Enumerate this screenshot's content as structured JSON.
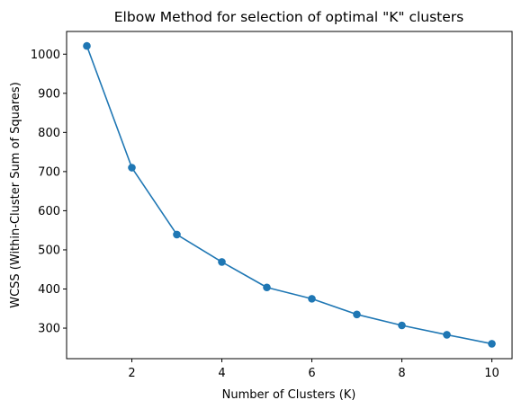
{
  "chart_data": {
    "type": "line",
    "title": "Elbow Method for selection of optimal \"K\" clusters",
    "xlabel": "Number of Clusters (K)",
    "ylabel": "WCSS (Within-Cluster Sum of Squares)",
    "xlim": [
      0.55,
      10.45
    ],
    "ylim": [
      222,
      1058
    ],
    "xticks": [
      2,
      4,
      6,
      8,
      10
    ],
    "yticks": [
      300,
      400,
      500,
      600,
      700,
      800,
      900,
      1000
    ],
    "grid": false,
    "marker": "circle",
    "series": [
      {
        "color": "#1f77b4",
        "x": [
          1,
          2,
          3,
          4,
          5,
          6,
          7,
          8,
          9,
          10
        ],
        "y": [
          1021,
          710,
          539,
          469,
          404,
          375,
          335,
          307,
          283,
          260
        ]
      }
    ]
  }
}
